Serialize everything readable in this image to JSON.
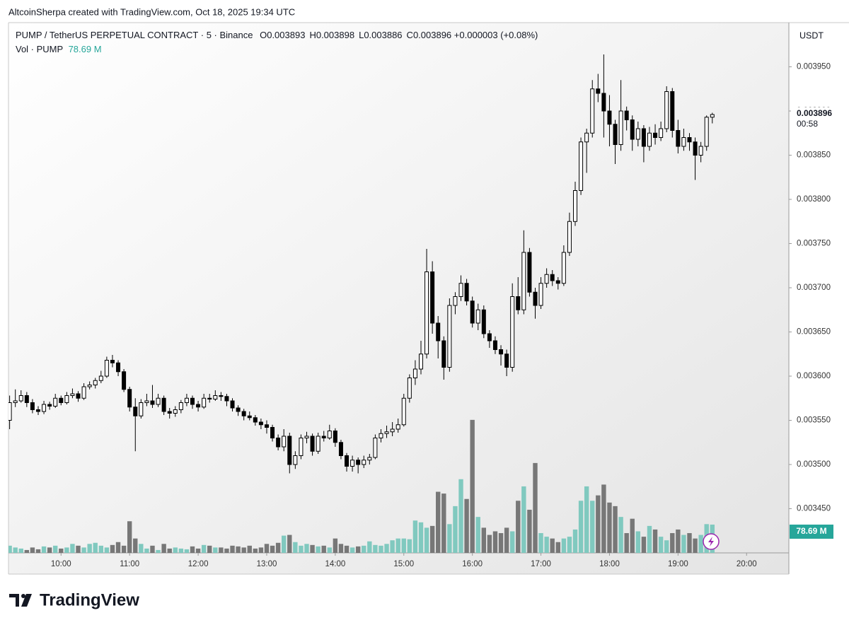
{
  "chart_data": {
    "type": "candlestick",
    "attribution": "AltcoinSherpa created with TradingView.com, Oct 18, 2025 19:34 UTC",
    "symbol": "PUMP / TetherUS PERPETUAL CONTRACT · 5 · Binance",
    "ohlc": [
      {
        "key": "O",
        "value": "0.003893"
      },
      {
        "key": "H",
        "value": "0.003898"
      },
      {
        "key": "L",
        "value": "0.003886"
      },
      {
        "key": "C",
        "value": "0.003896"
      }
    ],
    "change": "+0.000003 (+0.08%)",
    "volume_legend": "Vol · PUMP",
    "volume_legend_value": "78.69 M",
    "currency": "USDT",
    "last_price_label": "0.003896",
    "countdown": "00:58",
    "last_volume_label": "78.69 M",
    "brand": "TradingView",
    "up_color": "#ffffff",
    "down_color": "#000000",
    "volume_up_color": "#80c9bf",
    "volume_down_color": "#777777",
    "xlim": [
      554,
      1237
    ],
    "xticks": [
      {
        "value": 600,
        "label": "10:00"
      },
      {
        "value": 660,
        "label": "11:00"
      },
      {
        "value": 720,
        "label": "12:00"
      },
      {
        "value": 780,
        "label": "13:00"
      },
      {
        "value": 840,
        "label": "14:00"
      },
      {
        "value": 900,
        "label": "15:00"
      },
      {
        "value": 960,
        "label": "16:00"
      },
      {
        "value": 1020,
        "label": "17:00"
      },
      {
        "value": 1080,
        "label": "18:00"
      },
      {
        "value": 1140,
        "label": "19:00"
      },
      {
        "value": 1200,
        "label": "20:00"
      }
    ],
    "ylim": [
      0.0034,
      0.004
    ],
    "yticks": [
      {
        "value": 0.00345,
        "label": "0.003450"
      },
      {
        "value": 0.0035,
        "label": "0.003500"
      },
      {
        "value": 0.00355,
        "label": "0.003550"
      },
      {
        "value": 0.0036,
        "label": "0.003600"
      },
      {
        "value": 0.00365,
        "label": "0.003650"
      },
      {
        "value": 0.0037,
        "label": "0.003700"
      },
      {
        "value": 0.00375,
        "label": "0.003750"
      },
      {
        "value": 0.0038,
        "label": "0.003800"
      },
      {
        "value": 0.00385,
        "label": "0.003850"
      },
      {
        "value": 0.0039,
        "label": "0.003900"
      },
      {
        "value": 0.00395,
        "label": "0.003950"
      }
    ],
    "vol_lim": [
      0,
      1475
    ],
    "x": [
      555,
      560,
      565,
      570,
      575,
      580,
      585,
      590,
      595,
      600,
      605,
      610,
      615,
      620,
      625,
      630,
      635,
      640,
      645,
      650,
      655,
      660,
      665,
      670,
      675,
      680,
      685,
      690,
      695,
      700,
      705,
      710,
      715,
      720,
      725,
      730,
      735,
      740,
      745,
      750,
      755,
      760,
      765,
      770,
      775,
      780,
      785,
      790,
      795,
      800,
      805,
      810,
      815,
      820,
      825,
      830,
      835,
      840,
      845,
      850,
      855,
      860,
      865,
      870,
      875,
      880,
      885,
      890,
      895,
      900,
      905,
      910,
      915,
      920,
      925,
      930,
      935,
      940,
      945,
      950,
      955,
      960,
      965,
      970,
      975,
      980,
      985,
      990,
      995,
      1000,
      1005,
      1010,
      1015,
      1020,
      1025,
      1030,
      1035,
      1040,
      1045,
      1050,
      1055,
      1060,
      1065,
      1070,
      1075,
      1080,
      1085,
      1090,
      1095,
      1100,
      1105,
      1110,
      1115,
      1120,
      1125,
      1130,
      1135,
      1140,
      1145,
      1150,
      1155,
      1160,
      1165,
      1170
    ],
    "open": [
      0.00355,
      0.00357,
      0.003572,
      0.003578,
      0.00357,
      0.003562,
      0.00356,
      0.003568,
      0.003566,
      0.003575,
      0.00357,
      0.003578,
      0.00358,
      0.003575,
      0.003588,
      0.00359,
      0.003595,
      0.0036,
      0.003618,
      0.003615,
      0.003605,
      0.003585,
      0.003565,
      0.003555,
      0.00357,
      0.003572,
      0.003568,
      0.003575,
      0.00356,
      0.003558,
      0.003562,
      0.00357,
      0.003575,
      0.003568,
      0.003565,
      0.003575,
      0.003574,
      0.003578,
      0.003577,
      0.003572,
      0.003564,
      0.00356,
      0.003555,
      0.003553,
      0.003548,
      0.003545,
      0.003542,
      0.00353,
      0.00352,
      0.003532,
      0.0035,
      0.00351,
      0.00353,
      0.003532,
      0.003515,
      0.003532,
      0.00353,
      0.003538,
      0.003525,
      0.00351,
      0.003498,
      0.003505,
      0.0035,
      0.003505,
      0.003508,
      0.00353,
      0.003535,
      0.003537,
      0.00354,
      0.003545,
      0.003575,
      0.003598,
      0.003608,
      0.003625,
      0.003718,
      0.00366,
      0.00364,
      0.00361,
      0.00368,
      0.00369,
      0.003705,
      0.003685,
      0.00366,
      0.003675,
      0.003648,
      0.00364,
      0.00363,
      0.003625,
      0.00361,
      0.00369,
      0.003675,
      0.00374,
      0.003695,
      0.00368,
      0.003705,
      0.003715,
      0.003708,
      0.003705,
      0.00374,
      0.003775,
      0.00381,
      0.003865,
      0.003875,
      0.003925,
      0.00392,
      0.0039,
      0.003885,
      0.003862,
      0.0039,
      0.00389,
      0.003868,
      0.00388,
      0.00386,
      0.003875,
      0.00387,
      0.00388,
      0.003922,
      0.003878,
      0.00386,
      0.00387,
      0.003865,
      0.00385,
      0.00386,
      0.003893
    ],
    "high": [
      0.003578,
      0.003585,
      0.003584,
      0.003582,
      0.003574,
      0.003566,
      0.003572,
      0.003571,
      0.00358,
      0.003578,
      0.003582,
      0.003586,
      0.003583,
      0.003592,
      0.003594,
      0.003598,
      0.003606,
      0.003622,
      0.003624,
      0.003618,
      0.003608,
      0.003588,
      0.003575,
      0.003574,
      0.00358,
      0.00359,
      0.00358,
      0.003578,
      0.003564,
      0.003566,
      0.003573,
      0.00358,
      0.003578,
      0.003572,
      0.00358,
      0.00358,
      0.003584,
      0.003582,
      0.00358,
      0.003575,
      0.003567,
      0.003563,
      0.00356,
      0.003556,
      0.003552,
      0.00355,
      0.003545,
      0.003534,
      0.00354,
      0.003536,
      0.003515,
      0.003534,
      0.003537,
      0.003535,
      0.003536,
      0.003538,
      0.003545,
      0.003541,
      0.003528,
      0.003513,
      0.00351,
      0.003508,
      0.00351,
      0.003512,
      0.003534,
      0.00354,
      0.003544,
      0.003548,
      0.003552,
      0.00358,
      0.003602,
      0.003618,
      0.00364,
      0.003744,
      0.00373,
      0.003668,
      0.003645,
      0.003688,
      0.003695,
      0.003714,
      0.00371,
      0.00369,
      0.003682,
      0.00368,
      0.003652,
      0.003645,
      0.003635,
      0.00363,
      0.003705,
      0.003712,
      0.003765,
      0.003745,
      0.0037,
      0.003712,
      0.003722,
      0.00372,
      0.003712,
      0.003748,
      0.003785,
      0.00382,
      0.00387,
      0.00388,
      0.003935,
      0.003942,
      0.003964,
      0.003918,
      0.00389,
      0.003935,
      0.003905,
      0.003895,
      0.003888,
      0.003884,
      0.003882,
      0.003885,
      0.003888,
      0.003928,
      0.003926,
      0.00389,
      0.00388,
      0.003875,
      0.00387,
      0.003865,
      0.003895,
      0.003898
    ],
    "low": [
      0.00354,
      0.003565,
      0.00357,
      0.003565,
      0.003558,
      0.003556,
      0.003557,
      0.003562,
      0.003564,
      0.003567,
      0.003568,
      0.003575,
      0.003571,
      0.003573,
      0.003585,
      0.003586,
      0.003592,
      0.003598,
      0.00361,
      0.0036,
      0.003582,
      0.00356,
      0.003515,
      0.003552,
      0.003566,
      0.003564,
      0.003565,
      0.003556,
      0.003552,
      0.003554,
      0.003558,
      0.003566,
      0.003563,
      0.00356,
      0.003563,
      0.00357,
      0.003572,
      0.003572,
      0.003566,
      0.00356,
      0.003555,
      0.00355,
      0.00355,
      0.003544,
      0.00354,
      0.003535,
      0.003526,
      0.003516,
      0.003515,
      0.00349,
      0.003495,
      0.003506,
      0.003524,
      0.00351,
      0.003512,
      0.003526,
      0.003528,
      0.00352,
      0.003506,
      0.003492,
      0.003492,
      0.00349,
      0.003496,
      0.0035,
      0.003506,
      0.003525,
      0.00353,
      0.003532,
      0.003536,
      0.003543,
      0.00357,
      0.00359,
      0.003602,
      0.00362,
      0.003648,
      0.00362,
      0.003596,
      0.003605,
      0.00367,
      0.003685,
      0.00368,
      0.003655,
      0.003652,
      0.003643,
      0.003632,
      0.003625,
      0.003612,
      0.0036,
      0.003605,
      0.00367,
      0.00367,
      0.00369,
      0.003665,
      0.003676,
      0.0037,
      0.003702,
      0.003698,
      0.003702,
      0.003736,
      0.00377,
      0.003805,
      0.00383,
      0.00387,
      0.00391,
      0.00387,
      0.00386,
      0.00384,
      0.003855,
      0.003878,
      0.003855,
      0.00386,
      0.003842,
      0.003855,
      0.003862,
      0.003866,
      0.003876,
      0.00387,
      0.003852,
      0.003855,
      0.003855,
      0.003822,
      0.003842,
      0.003855,
      0.003886
    ],
    "close": [
      0.00357,
      0.003572,
      0.003578,
      0.00357,
      0.003562,
      0.00356,
      0.003568,
      0.003566,
      0.003575,
      0.00357,
      0.003578,
      0.00358,
      0.003575,
      0.003588,
      0.00359,
      0.003595,
      0.0036,
      0.003618,
      0.003615,
      0.003605,
      0.003585,
      0.003565,
      0.003555,
      0.00357,
      0.003572,
      0.003568,
      0.003575,
      0.00356,
      0.003558,
      0.003562,
      0.00357,
      0.003575,
      0.003568,
      0.003565,
      0.003575,
      0.003574,
      0.003578,
      0.003577,
      0.003572,
      0.003564,
      0.00356,
      0.003555,
      0.003553,
      0.003548,
      0.003545,
      0.003542,
      0.00353,
      0.00352,
      0.003532,
      0.0035,
      0.00351,
      0.00353,
      0.003532,
      0.003515,
      0.003532,
      0.00353,
      0.003538,
      0.003525,
      0.00351,
      0.003498,
      0.003505,
      0.0035,
      0.003505,
      0.003508,
      0.00353,
      0.003535,
      0.003537,
      0.00354,
      0.003545,
      0.003575,
      0.003598,
      0.003608,
      0.003625,
      0.003718,
      0.00366,
      0.00364,
      0.00361,
      0.00368,
      0.00369,
      0.003705,
      0.003685,
      0.00366,
      0.003675,
      0.003648,
      0.00364,
      0.00363,
      0.003625,
      0.00361,
      0.00369,
      0.003675,
      0.00374,
      0.003695,
      0.00368,
      0.003705,
      0.003715,
      0.003708,
      0.003705,
      0.00374,
      0.003775,
      0.00381,
      0.003865,
      0.003875,
      0.003925,
      0.00392,
      0.0039,
      0.003885,
      0.003862,
      0.0039,
      0.00389,
      0.003868,
      0.00388,
      0.00386,
      0.003875,
      0.00387,
      0.00388,
      0.003922,
      0.003878,
      0.00386,
      0.00387,
      0.003865,
      0.00385,
      0.00386,
      0.003893,
      0.003896
    ],
    "volume": [
      20,
      15,
      12,
      8,
      15,
      10,
      18,
      15,
      20,
      12,
      15,
      25,
      20,
      15,
      25,
      28,
      20,
      15,
      22,
      30,
      20,
      88,
      40,
      25,
      12,
      20,
      8,
      25,
      12,
      15,
      12,
      10,
      18,
      12,
      22,
      20,
      15,
      15,
      12,
      20,
      18,
      15,
      20,
      12,
      15,
      25,
      20,
      28,
      48,
      50,
      30,
      20,
      25,
      22,
      18,
      20,
      15,
      40,
      25,
      20,
      15,
      18,
      20,
      32,
      22,
      20,
      25,
      35,
      40,
      40,
      38,
      90,
      85,
      70,
      75,
      170,
      165,
      80,
      130,
      205,
      150,
      370,
      100,
      70,
      50,
      60,
      55,
      70,
      60,
      145,
      185,
      120,
      250,
      55,
      45,
      40,
      30,
      40,
      45,
      65,
      145,
      185,
      145,
      160,
      190,
      140,
      130,
      100,
      55,
      95,
      60,
      45,
      75,
      65,
      45,
      35,
      55,
      65,
      50,
      55,
      40,
      50,
      80,
      78.69
    ]
  }
}
